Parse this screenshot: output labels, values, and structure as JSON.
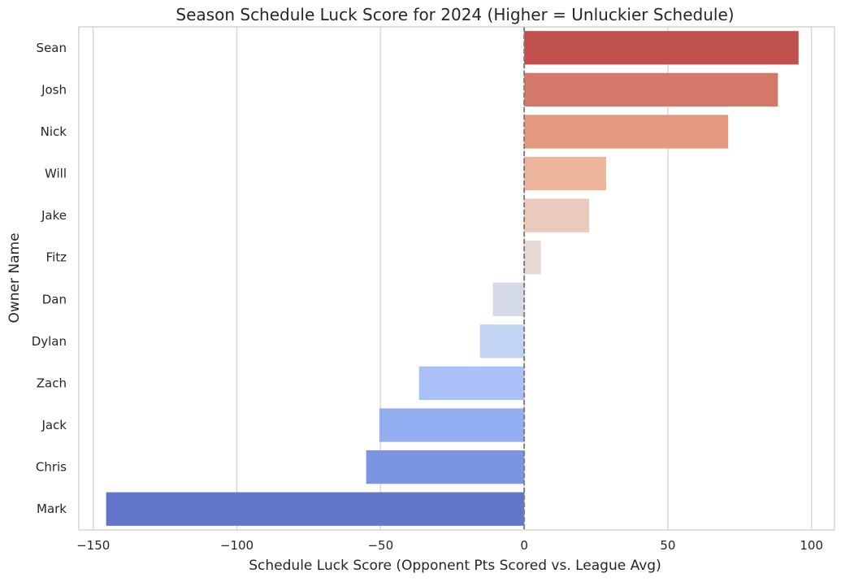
{
  "chart_data": {
    "type": "bar",
    "orientation": "horizontal",
    "title": "Season Schedule Luck Score for 2024 (Higher = Unluckier Schedule)",
    "xlabel": "Schedule Luck Score (Opponent Pts Scored vs. League Avg)",
    "ylabel": "Owner Name",
    "categories": [
      "Sean",
      "Josh",
      "Nick",
      "Will",
      "Jake",
      "Fitz",
      "Dan",
      "Dylan",
      "Zach",
      "Jack",
      "Chris",
      "Mark"
    ],
    "values": [
      95.5,
      88.3,
      71.0,
      28.5,
      22.6,
      5.8,
      -10.9,
      -15.4,
      -36.6,
      -50.4,
      -55.0,
      -145.5
    ],
    "colors": [
      "#c0504d",
      "#d4796a",
      "#e4997f",
      "#edb59c",
      "#eacabb",
      "#e6d9d4",
      "#d4dbe7",
      "#c2d4f3",
      "#a9c1f7",
      "#94aef2",
      "#7b95e3",
      "#6277ca"
    ],
    "xlim": [
      -155,
      108
    ],
    "xticks": [
      -150,
      -100,
      -50,
      0,
      50,
      100
    ],
    "xtick_labels": [
      "−150",
      "−100",
      "−50",
      "0",
      "50",
      "100"
    ],
    "grid": true,
    "reference_line": 0
  }
}
